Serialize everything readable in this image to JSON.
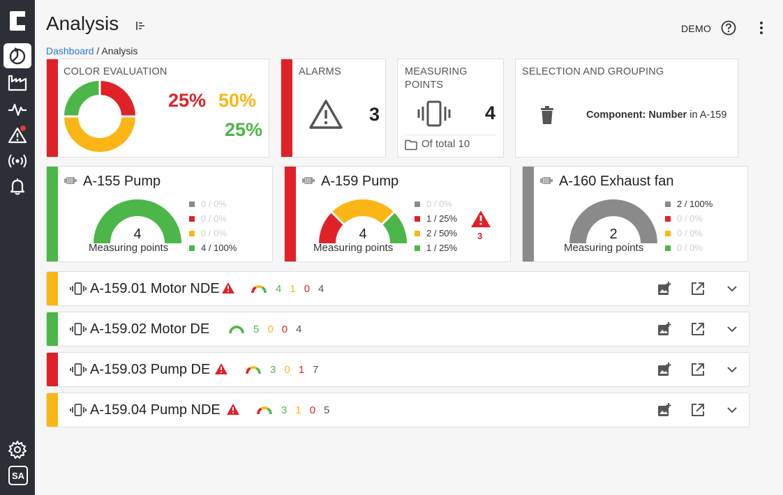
{
  "colors": {
    "green": "#4cb648",
    "red": "#e02128",
    "yellow": "#fbb615",
    "gray": "#8a8a8a",
    "sidebar": "#2c2f36",
    "link": "#2979d0"
  },
  "sidebar": {
    "logo": "c-logo-icon",
    "items": [
      {
        "icon": "analysis-icon",
        "active": true
      },
      {
        "icon": "factory-icon"
      },
      {
        "icon": "pulse-icon"
      },
      {
        "icon": "warning-icon",
        "badge": true
      },
      {
        "icon": "signal-icon"
      },
      {
        "icon": "bell-icon"
      }
    ],
    "settings_icon": "gear-icon",
    "user_initials": "SA"
  },
  "header": {
    "title": "Analysis",
    "tenant": "DEMO",
    "breadcrumb": {
      "root": "Dashboard",
      "separator": " / ",
      "current": "Analysis"
    }
  },
  "color_evaluation": {
    "heading": "COLOR EVALUATION",
    "red_pct": "25%",
    "yellow_pct": "50%",
    "green_pct": "25%",
    "shares": {
      "red": 0.25,
      "green": 0.25,
      "yellow": 0.5
    }
  },
  "alarms": {
    "heading": "ALARMS",
    "count": "3"
  },
  "measuring_points": {
    "heading": "MEASURING POINTS",
    "count": "4",
    "total_label": "Of total 10"
  },
  "selection": {
    "heading": "SELECTION AND GROUPING",
    "filter_key": "Component: Number",
    "filter_rest": " in A-159"
  },
  "machines": [
    {
      "name": "A-155 Pump",
      "count": "4",
      "caption": "Measuring points",
      "legend": [
        "0 / 0%",
        "0 / 0%",
        "0 / 0%",
        "4 / 100%"
      ],
      "alarm_count": ""
    },
    {
      "name": "A-159 Pump",
      "count": "4",
      "caption": "Measuring points",
      "legend": [
        "0 / 0%",
        "1 / 25%",
        "2 / 50%",
        "1 / 25%"
      ],
      "alarm_count": "3"
    },
    {
      "name": "A-160 Exhaust fan",
      "count": "2",
      "caption": "Measuring points",
      "legend": [
        "2 / 100%",
        "0 / 0%",
        "0 / 0%",
        "0 / 0%"
      ],
      "alarm_count": ""
    }
  ],
  "rows": [
    {
      "name": "A-159.01 Motor NDE",
      "alarm": true,
      "green": "4",
      "yellow": "1",
      "red": "0",
      "total": "4"
    },
    {
      "name": "A-159.02 Motor DE",
      "alarm": false,
      "green": "5",
      "yellow": "0",
      "red": "0",
      "total": "4"
    },
    {
      "name": "A-159.03 Pump DE",
      "alarm": true,
      "green": "3",
      "yellow": "0",
      "red": "1",
      "total": "7"
    },
    {
      "name": "A-159.04 Pump NDE",
      "alarm": true,
      "green": "3",
      "yellow": "1",
      "red": "0",
      "total": "5"
    }
  ],
  "row_actions": [
    "add-image-icon",
    "open-external-icon",
    "chevron-down-icon"
  ]
}
